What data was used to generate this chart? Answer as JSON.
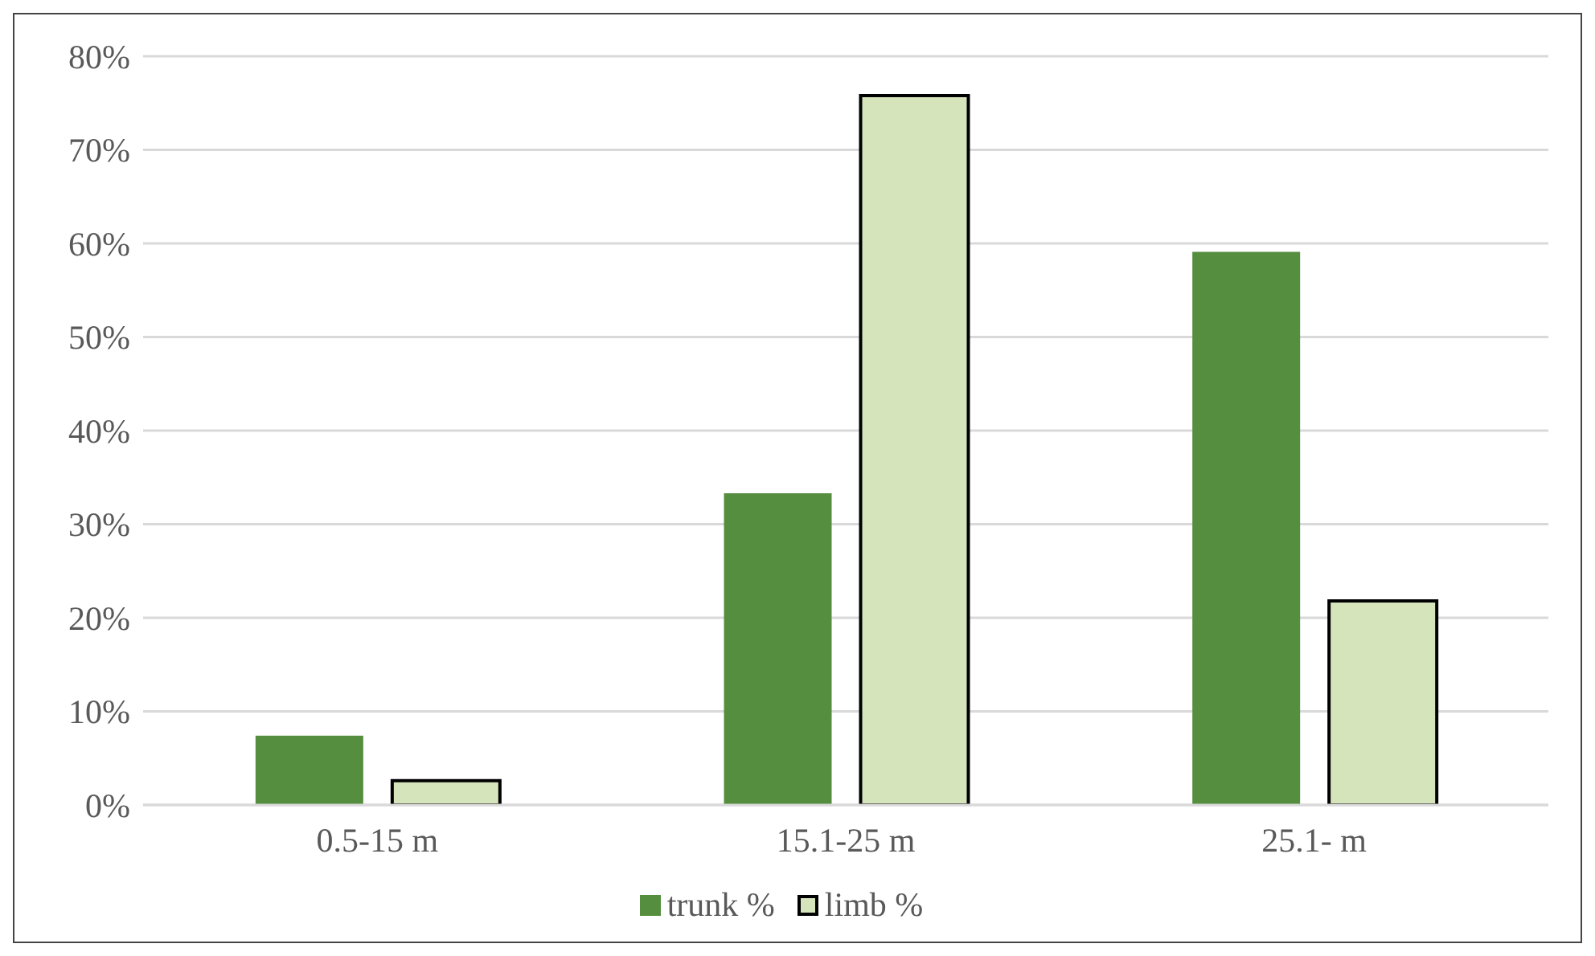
{
  "chart_data": {
    "type": "bar",
    "categories": [
      "0.5-15 m",
      "15.1-25 m",
      "25.1- m"
    ],
    "series": [
      {
        "name": "trunk %",
        "color": "#548e3e",
        "values": [
          7.4,
          33.3,
          59.1
        ]
      },
      {
        "name": "limb %",
        "color": "#d6e4bc",
        "values": [
          2.6,
          75.8,
          21.8
        ]
      }
    ],
    "ylim": [
      0,
      80
    ],
    "yticks": [
      {
        "value": 0,
        "label": "0%"
      },
      {
        "value": 10,
        "label": "10%"
      },
      {
        "value": 20,
        "label": "20%"
      },
      {
        "value": 30,
        "label": "30%"
      },
      {
        "value": 40,
        "label": "40%"
      },
      {
        "value": 50,
        "label": "50%"
      },
      {
        "value": 60,
        "label": "60%"
      },
      {
        "value": 70,
        "label": "70%"
      },
      {
        "value": 80,
        "label": "80%"
      }
    ],
    "grid": "y",
    "legend": "bottom"
  }
}
